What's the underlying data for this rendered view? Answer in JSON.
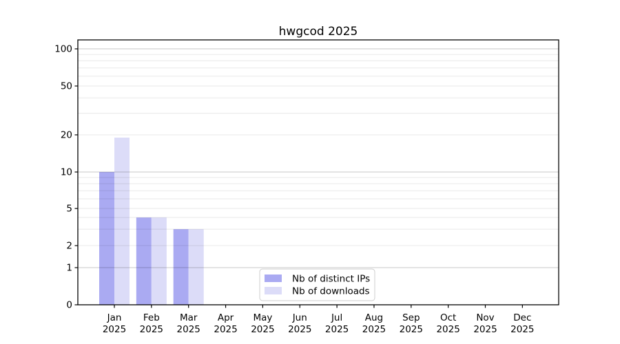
{
  "figure": {
    "title": "hwgcod 2025"
  },
  "chart_data": {
    "type": "bar",
    "title": "hwgcod 2025",
    "year_label": "2025",
    "months": [
      "Jan",
      "Feb",
      "Mar",
      "Apr",
      "May",
      "Jun",
      "Jul",
      "Aug",
      "Sep",
      "Oct",
      "Nov",
      "Dec"
    ],
    "series": [
      {
        "name": "Nb of distinct IPs",
        "color": "#aaaaf2",
        "values": [
          10,
          4,
          3,
          0,
          0,
          0,
          0,
          0,
          0,
          0,
          0,
          0
        ]
      },
      {
        "name": "Nb of downloads",
        "color": "#dcdcf8",
        "values": [
          19,
          4,
          3,
          0,
          0,
          0,
          0,
          0,
          0,
          0,
          0,
          0
        ]
      }
    ],
    "yscale": "log-like (0, then logarithmic above 1)",
    "ytick_labels": [
      "0",
      "1",
      "2",
      "5",
      "10",
      "20",
      "50",
      "100"
    ],
    "ylim": [
      0,
      118
    ],
    "grid": "horizontal major + minor",
    "legend_position": "lower center"
  },
  "colors": {
    "bar_distinct_ips": "#aaaaf2",
    "bar_downloads": "#dcdcf8",
    "axis": "#000000",
    "grid_strong": "rgba(0,0,0,0.22)",
    "grid_weak": "rgba(0,0,0,0.09)",
    "legend_border": "#cccccc",
    "background": "#ffffff"
  }
}
